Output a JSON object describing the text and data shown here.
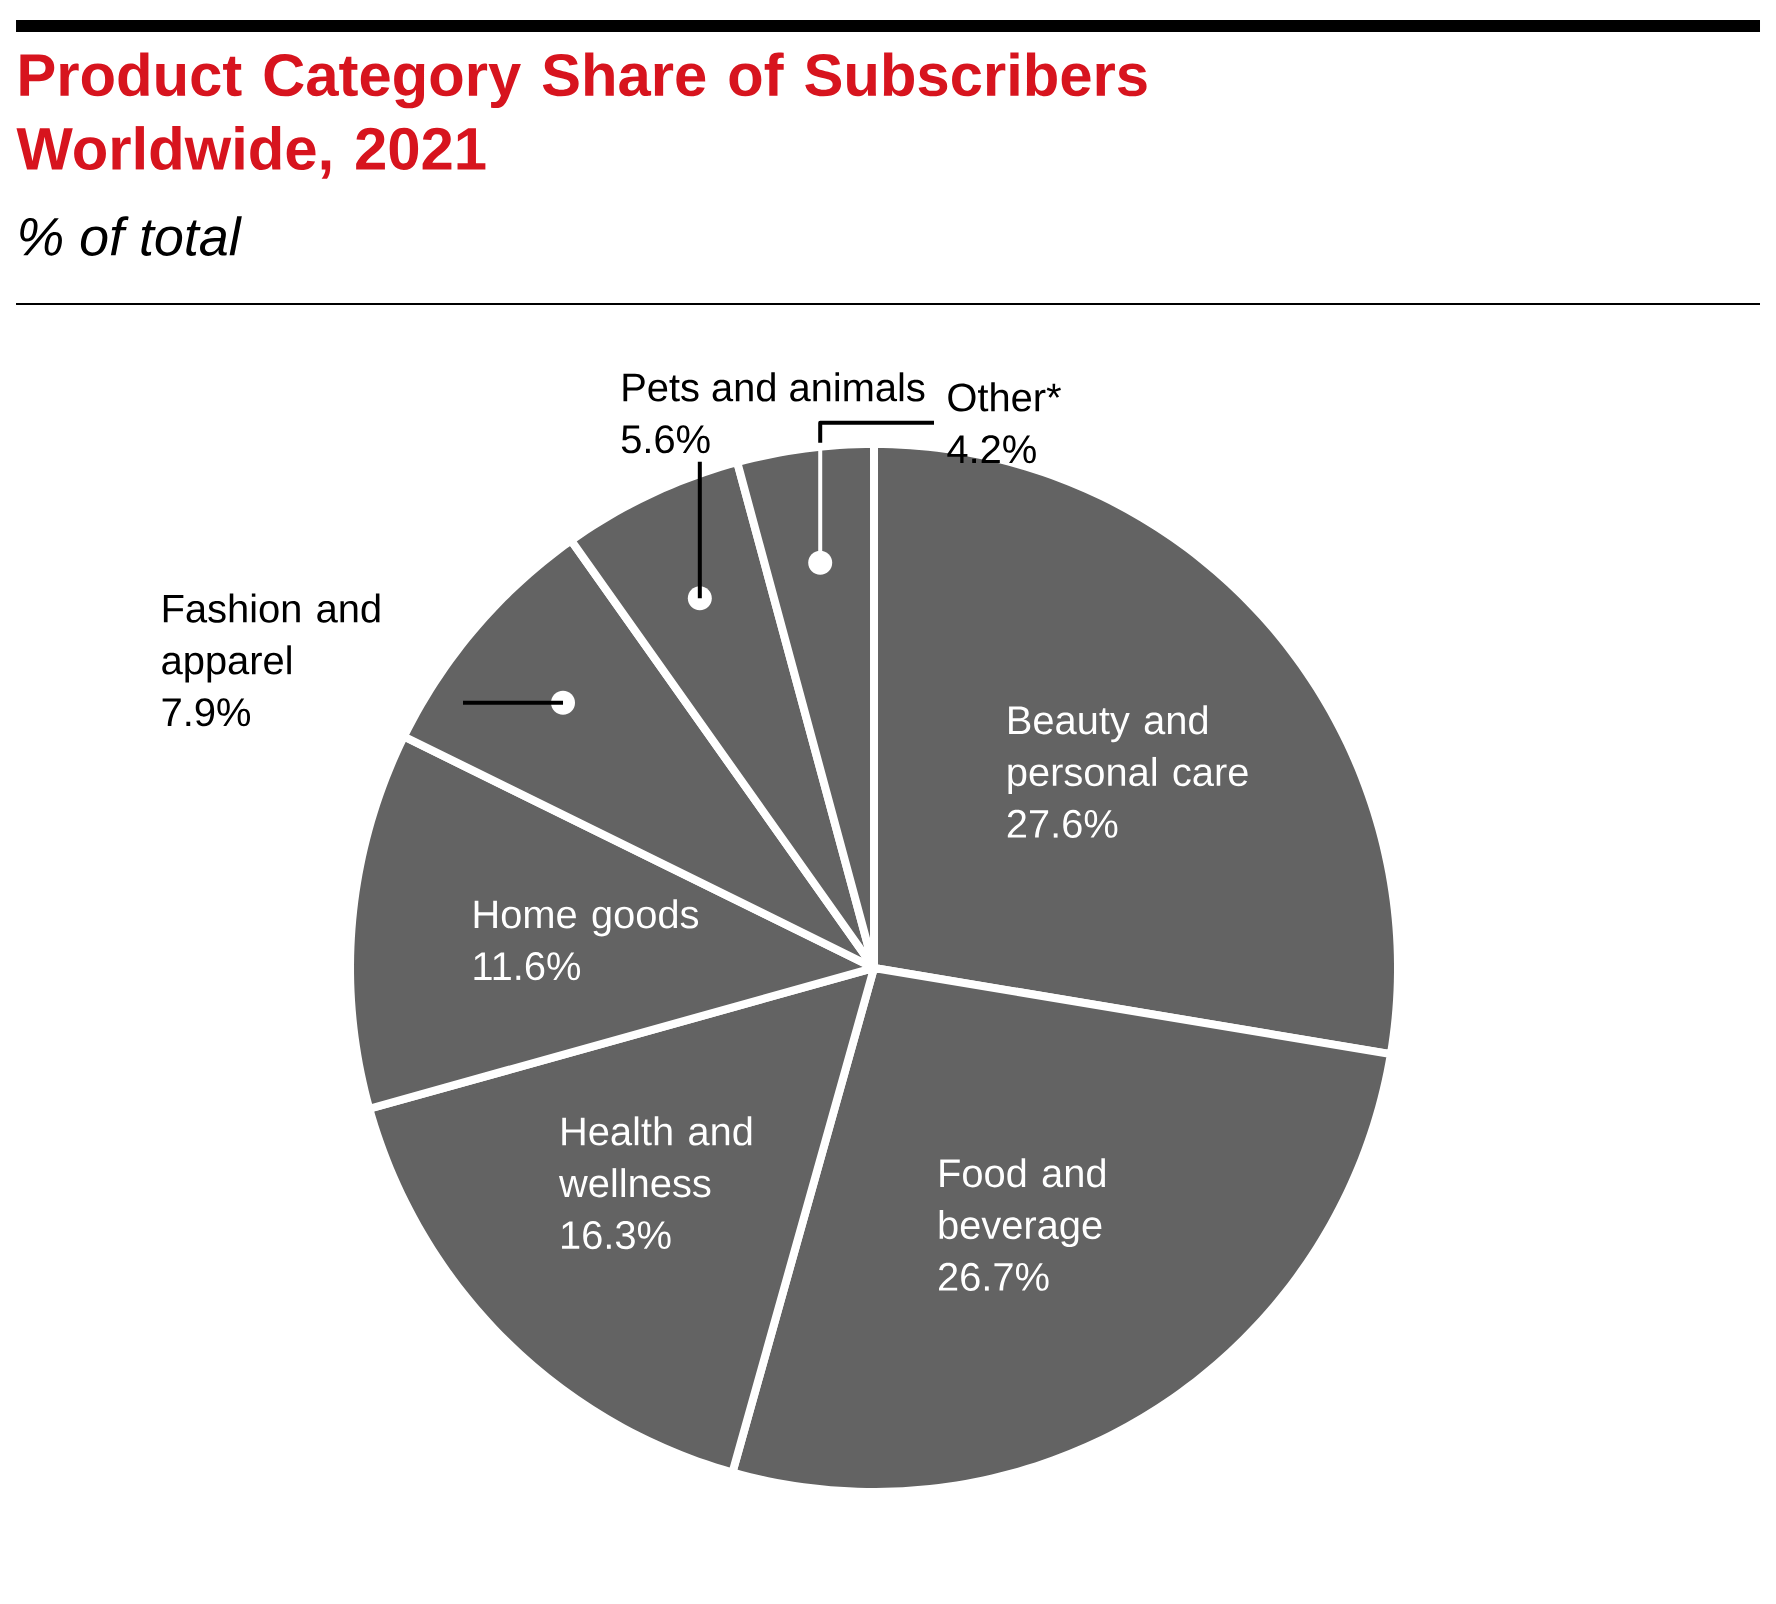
{
  "chart_data": {
    "type": "pie",
    "title": "Product Category Share of Subscribers Worldwide, 2021",
    "subtitle": "% of total",
    "categories": [
      "Beauty and personal care",
      "Food and beverage",
      "Health and wellness",
      "Home goods",
      "Fashion and apparel",
      "Pets and animals",
      "Other*"
    ],
    "values": [
      27.6,
      26.7,
      16.3,
      11.6,
      7.9,
      5.6,
      4.2
    ],
    "value_labels": [
      "27.6%",
      "26.7%",
      "16.3%",
      "11.6%",
      "7.9%",
      "5.6%",
      "4.2%"
    ],
    "colors": [
      "#636363",
      "#636363",
      "#636363",
      "#636363",
      "#636363",
      "#636363",
      "#636363"
    ]
  }
}
